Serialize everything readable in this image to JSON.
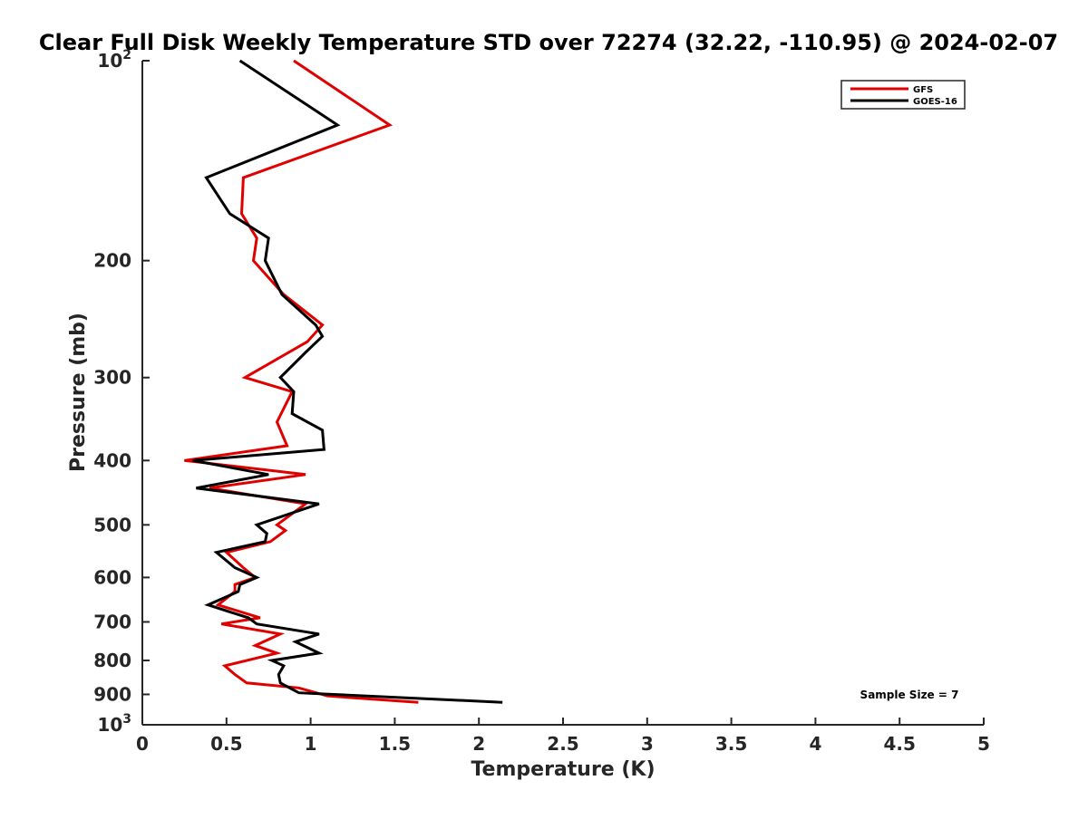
{
  "chart_data": {
    "type": "line",
    "title": "Clear Full Disk Weekly Temperature STD over 72274 (32.22, -110.95) @ 2024-02-07",
    "xlabel": "Temperature (K)",
    "ylabel": "Pressure (mb)",
    "xlim": [
      0,
      5
    ],
    "ylim": [
      1000,
      100
    ],
    "y_scale": "log",
    "y_reversed": true,
    "x_ticks": [
      0,
      0.5,
      1,
      1.5,
      2,
      2.5,
      3,
      3.5,
      4,
      4.5,
      5
    ],
    "x_tick_labels": [
      "0",
      "0.5",
      "1",
      "1.5",
      "2",
      "2.5",
      "3",
      "3.5",
      "4",
      "4.5",
      "5"
    ],
    "y_ticks": [
      100,
      200,
      300,
      400,
      500,
      600,
      700,
      800,
      900,
      1000
    ],
    "y_tick_labels": [
      {
        "base": "10",
        "exp": "2"
      },
      {
        "base": "200",
        "exp": ""
      },
      {
        "base": "300",
        "exp": ""
      },
      {
        "base": "400",
        "exp": ""
      },
      {
        "base": "500",
        "exp": ""
      },
      {
        "base": "600",
        "exp": ""
      },
      {
        "base": "700",
        "exp": ""
      },
      {
        "base": "800",
        "exp": ""
      },
      {
        "base": "900",
        "exp": ""
      },
      {
        "base": "10",
        "exp": "3"
      }
    ],
    "grid": false,
    "legend_position": "top-right",
    "annotation": "Sample Size = 7",
    "series": [
      {
        "name": "GFS",
        "color": "#e00000",
        "points": [
          [
            0.9,
            100
          ],
          [
            1.47,
            125
          ],
          [
            0.6,
            150
          ],
          [
            0.59,
            170
          ],
          [
            0.68,
            185
          ],
          [
            0.66,
            200
          ],
          [
            0.84,
            225
          ],
          [
            1.07,
            250
          ],
          [
            0.98,
            265
          ],
          [
            0.61,
            300
          ],
          [
            0.89,
            315
          ],
          [
            0.8,
            350
          ],
          [
            0.86,
            380
          ],
          [
            0.25,
            400
          ],
          [
            0.97,
            420
          ],
          [
            0.4,
            440
          ],
          [
            0.97,
            465
          ],
          [
            0.8,
            500
          ],
          [
            0.85,
            510
          ],
          [
            0.76,
            530
          ],
          [
            0.5,
            550
          ],
          [
            0.6,
            580
          ],
          [
            0.67,
            600
          ],
          [
            0.55,
            615
          ],
          [
            0.55,
            630
          ],
          [
            0.45,
            660
          ],
          [
            0.7,
            690
          ],
          [
            0.47,
            705
          ],
          [
            0.82,
            730
          ],
          [
            0.67,
            760
          ],
          [
            0.8,
            780
          ],
          [
            0.49,
            815
          ],
          [
            0.55,
            840
          ],
          [
            0.62,
            865
          ],
          [
            0.93,
            880
          ],
          [
            1.1,
            905
          ],
          [
            1.64,
            925
          ]
        ]
      },
      {
        "name": "GOES-16",
        "color": "#000000",
        "points": [
          [
            0.58,
            100
          ],
          [
            1.16,
            125
          ],
          [
            0.38,
            150
          ],
          [
            0.52,
            170
          ],
          [
            0.75,
            185
          ],
          [
            0.73,
            200
          ],
          [
            0.83,
            225
          ],
          [
            1.03,
            250
          ],
          [
            1.07,
            260
          ],
          [
            0.97,
            275
          ],
          [
            0.82,
            300
          ],
          [
            0.9,
            315
          ],
          [
            0.89,
            340
          ],
          [
            1.07,
            360
          ],
          [
            1.08,
            385
          ],
          [
            0.3,
            400
          ],
          [
            0.75,
            420
          ],
          [
            0.32,
            440
          ],
          [
            1.05,
            465
          ],
          [
            0.68,
            500
          ],
          [
            0.74,
            515
          ],
          [
            0.73,
            530
          ],
          [
            0.44,
            550
          ],
          [
            0.55,
            580
          ],
          [
            0.68,
            600
          ],
          [
            0.58,
            615
          ],
          [
            0.57,
            630
          ],
          [
            0.39,
            660
          ],
          [
            0.63,
            690
          ],
          [
            0.68,
            705
          ],
          [
            1.05,
            730
          ],
          [
            0.91,
            750
          ],
          [
            1.05,
            780
          ],
          [
            0.77,
            800
          ],
          [
            0.84,
            815
          ],
          [
            0.81,
            840
          ],
          [
            0.82,
            865
          ],
          [
            0.93,
            895
          ],
          [
            2.14,
            925
          ]
        ]
      }
    ]
  }
}
